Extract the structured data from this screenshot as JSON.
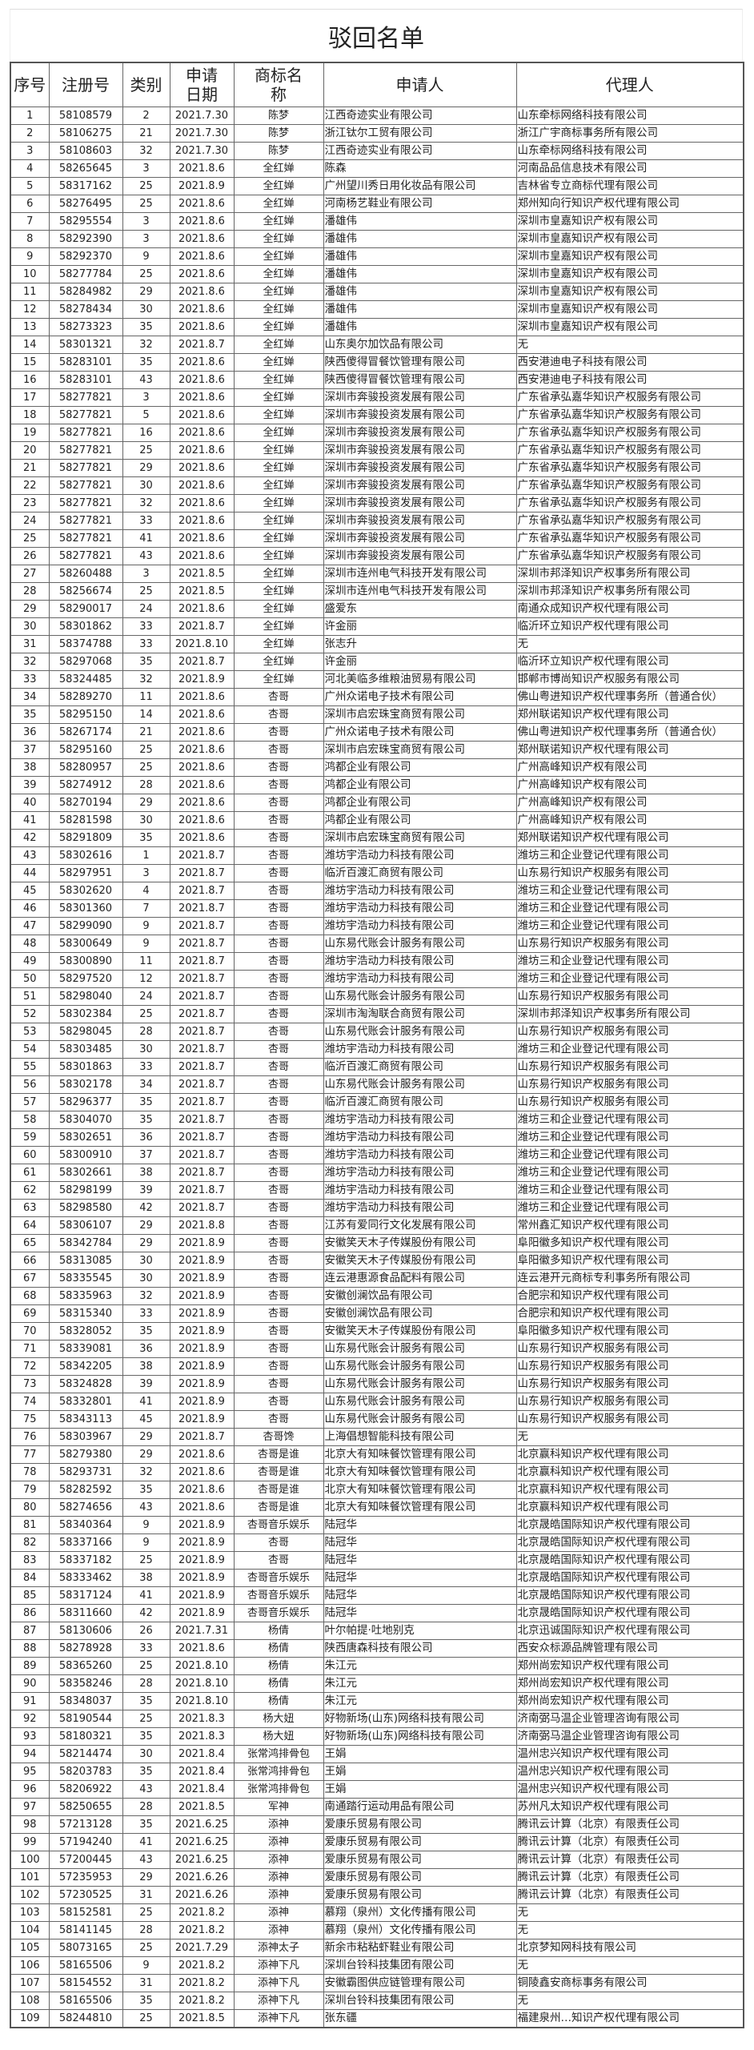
{
  "title": "驳回名单",
  "columns": [
    "序号",
    "注册号",
    "类别",
    "申请日期",
    "商标名称",
    "申请人",
    "代理人"
  ],
  "rows": [
    [
      "1",
      "58108579",
      "2",
      "2021.7.30",
      "陈梦",
      "江西奇迹实业有限公司",
      "山东牵标网络科技有限公司"
    ],
    [
      "2",
      "58106275",
      "21",
      "2021.7.30",
      "陈梦",
      "浙江钛尔工贸有限公司",
      "浙江广宇商标事务所有限公司"
    ],
    [
      "3",
      "58108603",
      "32",
      "2021.7.30",
      "陈梦",
      "江西奇迹实业有限公司",
      "山东牵标网络科技有限公司"
    ],
    [
      "4",
      "58265645",
      "3",
      "2021.8.6",
      "全红婵",
      "陈森",
      "河南品品信息技术有限公司"
    ],
    [
      "5",
      "58317162",
      "25",
      "2021.8.9",
      "全红婵",
      "广州望川秀日用化妆品有限公司",
      "吉林省专立商标代理有限公司"
    ],
    [
      "6",
      "58276495",
      "25",
      "2021.8.6",
      "全红婵",
      "河南杨艺鞋业有限公司",
      "郑州知向行知识产权代理有限公司"
    ],
    [
      "7",
      "58295554",
      "3",
      "2021.8.6",
      "全红婵",
      "潘雄伟",
      "深圳市皇嘉知识产权有限公司"
    ],
    [
      "8",
      "58292390",
      "3",
      "2021.8.6",
      "全红婵",
      "潘雄伟",
      "深圳市皇嘉知识产权有限公司"
    ],
    [
      "9",
      "58292370",
      "9",
      "2021.8.6",
      "全红婵",
      "潘雄伟",
      "深圳市皇嘉知识产权有限公司"
    ],
    [
      "10",
      "58277784",
      "25",
      "2021.8.6",
      "全红婵",
      "潘雄伟",
      "深圳市皇嘉知识产权有限公司"
    ],
    [
      "11",
      "58284982",
      "29",
      "2021.8.6",
      "全红婵",
      "潘雄伟",
      "深圳市皇嘉知识产权有限公司"
    ],
    [
      "12",
      "58278434",
      "30",
      "2021.8.6",
      "全红婵",
      "潘雄伟",
      "深圳市皇嘉知识产权有限公司"
    ],
    [
      "13",
      "58273323",
      "35",
      "2021.8.6",
      "全红婵",
      "潘雄伟",
      "深圳市皇嘉知识产权有限公司"
    ],
    [
      "14",
      "58301321",
      "32",
      "2021.8.7",
      "全红婵",
      "山东奥尔加饮品有限公司",
      "无"
    ],
    [
      "15",
      "58283101",
      "35",
      "2021.8.6",
      "全红婵",
      "陕西傻得冒餐饮管理有限公司",
      "西安港迪电子科技有限公司"
    ],
    [
      "16",
      "58283101",
      "43",
      "2021.8.6",
      "全红婵",
      "陕西傻得冒餐饮管理有限公司",
      "西安港迪电子科技有限公司"
    ],
    [
      "17",
      "58277821",
      "3",
      "2021.8.6",
      "全红婵",
      "深圳市奔骏投资发展有限公司",
      "广东省承弘嘉华知识产权服务有限公司"
    ],
    [
      "18",
      "58277821",
      "5",
      "2021.8.6",
      "全红婵",
      "深圳市奔骏投资发展有限公司",
      "广东省承弘嘉华知识产权服务有限公司"
    ],
    [
      "19",
      "58277821",
      "16",
      "2021.8.6",
      "全红婵",
      "深圳市奔骏投资发展有限公司",
      "广东省承弘嘉华知识产权服务有限公司"
    ],
    [
      "20",
      "58277821",
      "25",
      "2021.8.6",
      "全红婵",
      "深圳市奔骏投资发展有限公司",
      "广东省承弘嘉华知识产权服务有限公司"
    ],
    [
      "21",
      "58277821",
      "29",
      "2021.8.6",
      "全红婵",
      "深圳市奔骏投资发展有限公司",
      "广东省承弘嘉华知识产权服务有限公司"
    ],
    [
      "22",
      "58277821",
      "30",
      "2021.8.6",
      "全红婵",
      "深圳市奔骏投资发展有限公司",
      "广东省承弘嘉华知识产权服务有限公司"
    ],
    [
      "23",
      "58277821",
      "32",
      "2021.8.6",
      "全红婵",
      "深圳市奔骏投资发展有限公司",
      "广东省承弘嘉华知识产权服务有限公司"
    ],
    [
      "24",
      "58277821",
      "33",
      "2021.8.6",
      "全红婵",
      "深圳市奔骏投资发展有限公司",
      "广东省承弘嘉华知识产权服务有限公司"
    ],
    [
      "25",
      "58277821",
      "41",
      "2021.8.6",
      "全红婵",
      "深圳市奔骏投资发展有限公司",
      "广东省承弘嘉华知识产权服务有限公司"
    ],
    [
      "26",
      "58277821",
      "43",
      "2021.8.6",
      "全红婵",
      "深圳市奔骏投资发展有限公司",
      "广东省承弘嘉华知识产权服务有限公司"
    ],
    [
      "27",
      "58260488",
      "3",
      "2021.8.5",
      "全红婵",
      "深圳市连州电气科技开发有限公司",
      "深圳市邦泽知识产权事务所有限公司"
    ],
    [
      "28",
      "58256674",
      "25",
      "2021.8.5",
      "全红婵",
      "深圳市连州电气科技开发有限公司",
      "深圳市邦泽知识产权事务所有限公司"
    ],
    [
      "29",
      "58290017",
      "24",
      "2021.8.6",
      "全红婵",
      "盛爱东",
      "南通众成知识产权代理有限公司"
    ],
    [
      "30",
      "58301862",
      "33",
      "2021.8.7",
      "全红婵",
      "许金丽",
      "临沂环立知识产权代理有限公司"
    ],
    [
      "31",
      "58374788",
      "33",
      "2021.8.10",
      "全红婵",
      "张志升",
      "无"
    ],
    [
      "32",
      "58297068",
      "35",
      "2021.8.7",
      "全红婵",
      "许金丽",
      "临沂环立知识产权代理有限公司"
    ],
    [
      "33",
      "58324485",
      "32",
      "2021.8.9",
      "全红婵",
      "河北美临多维粮油贸易有限公司",
      "邯郸市博尚知识产权服务有限公司"
    ],
    [
      "34",
      "58289270",
      "11",
      "2021.8.6",
      "杏哥",
      "广州众诺电子技术有限公司",
      "佛山粤进知识产权代理事务所（普通合伙）"
    ],
    [
      "35",
      "58295150",
      "14",
      "2021.8.6",
      "杏哥",
      "深圳市启宏珠宝商贸有限公司",
      "郑州联诺知识产权代理有限公司"
    ],
    [
      "36",
      "58267174",
      "21",
      "2021.8.6",
      "杏哥",
      "广州众诺电子技术有限公司",
      "佛山粤进知识产权代理事务所（普通合伙）"
    ],
    [
      "37",
      "58295160",
      "25",
      "2021.8.6",
      "杏哥",
      "深圳市启宏珠宝商贸有限公司",
      "郑州联诺知识产权代理有限公司"
    ],
    [
      "38",
      "58280957",
      "25",
      "2021.8.6",
      "杏哥",
      "鸿都企业有限公司",
      "广州高峰知识产权有限公司"
    ],
    [
      "39",
      "58274912",
      "28",
      "2021.8.6",
      "杏哥",
      "鸿都企业有限公司",
      "广州高峰知识产权有限公司"
    ],
    [
      "40",
      "58270194",
      "29",
      "2021.8.6",
      "杏哥",
      "鸿都企业有限公司",
      "广州高峰知识产权有限公司"
    ],
    [
      "41",
      "58281598",
      "30",
      "2021.8.6",
      "杏哥",
      "鸿都企业有限公司",
      "广州高峰知识产权有限公司"
    ],
    [
      "42",
      "58291809",
      "35",
      "2021.8.6",
      "杏哥",
      "深圳市启宏珠宝商贸有限公司",
      "郑州联诺知识产权代理有限公司"
    ],
    [
      "43",
      "58302616",
      "1",
      "2021.8.7",
      "杏哥",
      "潍坊宇浩动力科技有限公司",
      "潍坊三和企业登记代理有限公司"
    ],
    [
      "44",
      "58297951",
      "3",
      "2021.8.7",
      "杏哥",
      "临沂百渡汇商贸有限公司",
      "山东易行知识产权服务有限公司"
    ],
    [
      "45",
      "58302620",
      "4",
      "2021.8.7",
      "杏哥",
      "潍坊宇浩动力科技有限公司",
      "潍坊三和企业登记代理有限公司"
    ],
    [
      "46",
      "58301360",
      "7",
      "2021.8.7",
      "杏哥",
      "潍坊宇浩动力科技有限公司",
      "潍坊三和企业登记代理有限公司"
    ],
    [
      "47",
      "58299090",
      "9",
      "2021.8.7",
      "杏哥",
      "潍坊宇浩动力科技有限公司",
      "潍坊三和企业登记代理有限公司"
    ],
    [
      "48",
      "58300649",
      "9",
      "2021.8.7",
      "杏哥",
      "山东易代账会计服务有限公司",
      "山东易行知识产权服务有限公司"
    ],
    [
      "49",
      "58300890",
      "11",
      "2021.8.7",
      "杏哥",
      "潍坊宇浩动力科技有限公司",
      "潍坊三和企业登记代理有限公司"
    ],
    [
      "50",
      "58297520",
      "12",
      "2021.8.7",
      "杏哥",
      "潍坊宇浩动力科技有限公司",
      "潍坊三和企业登记代理有限公司"
    ],
    [
      "51",
      "58298040",
      "24",
      "2021.8.7",
      "杏哥",
      "山东易代账会计服务有限公司",
      "山东易行知识产权服务有限公司"
    ],
    [
      "52",
      "58302384",
      "25",
      "2021.8.7",
      "杏哥",
      "深圳市淘淘联合商贸有限公司",
      "深圳市邦泽知识产权事务所有限公司"
    ],
    [
      "53",
      "58298045",
      "28",
      "2021.8.7",
      "杏哥",
      "山东易代账会计服务有限公司",
      "山东易行知识产权服务有限公司"
    ],
    [
      "54",
      "58303485",
      "30",
      "2021.8.7",
      "杏哥",
      "潍坊宇浩动力科技有限公司",
      "潍坊三和企业登记代理有限公司"
    ],
    [
      "55",
      "58301863",
      "33",
      "2021.8.7",
      "杏哥",
      "临沂百渡汇商贸有限公司",
      "山东易行知识产权服务有限公司"
    ],
    [
      "56",
      "58302178",
      "34",
      "2021.8.7",
      "杏哥",
      "山东易代账会计服务有限公司",
      "山东易行知识产权服务有限公司"
    ],
    [
      "57",
      "58296377",
      "35",
      "2021.8.7",
      "杏哥",
      "临沂百渡汇商贸有限公司",
      "山东易行知识产权服务有限公司"
    ],
    [
      "58",
      "58304070",
      "35",
      "2021.8.7",
      "杏哥",
      "潍坊宇浩动力科技有限公司",
      "潍坊三和企业登记代理有限公司"
    ],
    [
      "59",
      "58302651",
      "36",
      "2021.8.7",
      "杏哥",
      "潍坊宇浩动力科技有限公司",
      "潍坊三和企业登记代理有限公司"
    ],
    [
      "60",
      "58300910",
      "37",
      "2021.8.7",
      "杏哥",
      "潍坊宇浩动力科技有限公司",
      "潍坊三和企业登记代理有限公司"
    ],
    [
      "61",
      "58302661",
      "38",
      "2021.8.7",
      "杏哥",
      "潍坊宇浩动力科技有限公司",
      "潍坊三和企业登记代理有限公司"
    ],
    [
      "62",
      "58298199",
      "39",
      "2021.8.7",
      "杏哥",
      "潍坊宇浩动力科技有限公司",
      "潍坊三和企业登记代理有限公司"
    ],
    [
      "63",
      "58298580",
      "42",
      "2021.8.7",
      "杏哥",
      "潍坊宇浩动力科技有限公司",
      "潍坊三和企业登记代理有限公司"
    ],
    [
      "64",
      "58306107",
      "29",
      "2021.8.8",
      "杏哥",
      "江苏有爱同行文化发展有限公司",
      "常州鑫汇知识产权代理有限公司"
    ],
    [
      "65",
      "58342784",
      "29",
      "2021.8.9",
      "杏哥",
      "安徽笑天木子传媒股份有限公司",
      "阜阳徽多知识产权代理有限公司"
    ],
    [
      "66",
      "58313085",
      "30",
      "2021.8.9",
      "杏哥",
      "安徽笑天木子传媒股份有限公司",
      "阜阳徽多知识产权代理有限公司"
    ],
    [
      "67",
      "58335545",
      "30",
      "2021.8.9",
      "杏哥",
      "连云港惠源食品配料有限公司",
      "连云港开元商标专利事务所有限公司"
    ],
    [
      "68",
      "58335963",
      "32",
      "2021.8.9",
      "杏哥",
      "安徽创澜饮品有限公司",
      "合肥宗和知识产权代理有限公司"
    ],
    [
      "69",
      "58315340",
      "33",
      "2021.8.9",
      "杏哥",
      "安徽创澜饮品有限公司",
      "合肥宗和知识产权代理有限公司"
    ],
    [
      "70",
      "58328052",
      "35",
      "2021.8.9",
      "杏哥",
      "安徽笑天木子传媒股份有限公司",
      "阜阳徽多知识产权代理有限公司"
    ],
    [
      "71",
      "58339081",
      "36",
      "2021.8.9",
      "杏哥",
      "山东易代账会计服务有限公司",
      "山东易行知识产权服务有限公司"
    ],
    [
      "72",
      "58342205",
      "38",
      "2021.8.9",
      "杏哥",
      "山东易代账会计服务有限公司",
      "山东易行知识产权服务有限公司"
    ],
    [
      "73",
      "58324828",
      "39",
      "2021.8.9",
      "杏哥",
      "山东易代账会计服务有限公司",
      "山东易行知识产权服务有限公司"
    ],
    [
      "74",
      "58332801",
      "41",
      "2021.8.9",
      "杏哥",
      "山东易代账会计服务有限公司",
      "山东易行知识产权服务有限公司"
    ],
    [
      "75",
      "58343113",
      "45",
      "2021.8.9",
      "杏哥",
      "山东易代账会计服务有限公司",
      "山东易行知识产权服务有限公司"
    ],
    [
      "76",
      "58303967",
      "29",
      "2021.8.7",
      "杏哥馋",
      "上海倡想智能科技有限公司",
      "无"
    ],
    [
      "77",
      "58279380",
      "29",
      "2021.8.6",
      "杏哥是谁",
      "北京大有知味餐饮管理有限公司",
      "北京赢科知识产权代理有限公司"
    ],
    [
      "78",
      "58293731",
      "32",
      "2021.8.6",
      "杏哥是谁",
      "北京大有知味餐饮管理有限公司",
      "北京赢科知识产权代理有限公司"
    ],
    [
      "79",
      "58282592",
      "35",
      "2021.8.6",
      "杏哥是谁",
      "北京大有知味餐饮管理有限公司",
      "北京赢科知识产权代理有限公司"
    ],
    [
      "80",
      "58274656",
      "43",
      "2021.8.6",
      "杏哥是谁",
      "北京大有知味餐饮管理有限公司",
      "北京赢科知识产权代理有限公司"
    ],
    [
      "81",
      "58340364",
      "9",
      "2021.8.9",
      "杏哥音乐娱乐",
      "陆冠华",
      "北京晟皓国际知识产权代理有限公司"
    ],
    [
      "82",
      "58337166",
      "9",
      "2021.8.9",
      "杏哥",
      "陆冠华",
      "北京晟皓国际知识产权代理有限公司"
    ],
    [
      "83",
      "58337182",
      "25",
      "2021.8.9",
      "杏哥",
      "陆冠华",
      "北京晟皓国际知识产权代理有限公司"
    ],
    [
      "84",
      "58333462",
      "38",
      "2021.8.9",
      "杏哥音乐娱乐",
      "陆冠华",
      "北京晟皓国际知识产权代理有限公司"
    ],
    [
      "85",
      "58317124",
      "41",
      "2021.8.9",
      "杏哥音乐娱乐",
      "陆冠华",
      "北京晟皓国际知识产权代理有限公司"
    ],
    [
      "86",
      "58311660",
      "42",
      "2021.8.9",
      "杏哥音乐娱乐",
      "陆冠华",
      "北京晟皓国际知识产权代理有限公司"
    ],
    [
      "87",
      "58130606",
      "26",
      "2021.7.31",
      "杨倩",
      "叶尔帕提·吐地别克",
      "北京迅诚国际知识产权代理有限公司"
    ],
    [
      "88",
      "58278928",
      "33",
      "2021.8.6",
      "杨倩",
      "陕西唐森科技有限公司",
      "西安众标源品牌管理有限公司"
    ],
    [
      "89",
      "58365260",
      "25",
      "2021.8.10",
      "杨倩",
      "朱江元",
      "郑州尚宏知识产权代理有限公司"
    ],
    [
      "90",
      "58358246",
      "28",
      "2021.8.10",
      "杨倩",
      "朱江元",
      "郑州尚宏知识产权代理有限公司"
    ],
    [
      "91",
      "58348037",
      "35",
      "2021.8.10",
      "杨倩",
      "朱江元",
      "郑州尚宏知识产权代理有限公司"
    ],
    [
      "92",
      "58190544",
      "25",
      "2021.8.3",
      "杨大妞",
      "好物新场(山东)网络科技有限公司",
      "济南弼马温企业管理咨询有限公司"
    ],
    [
      "93",
      "58180321",
      "35",
      "2021.8.3",
      "杨大妞",
      "好物新场(山东)网络科技有限公司",
      "济南弼马温企业管理咨询有限公司"
    ],
    [
      "94",
      "58214474",
      "30",
      "2021.8.4",
      "张常鸿排骨包",
      "王娟",
      "温州忠兴知识产权代理有限公司"
    ],
    [
      "95",
      "58203783",
      "35",
      "2021.8.4",
      "张常鸿排骨包",
      "王娟",
      "温州忠兴知识产权代理有限公司"
    ],
    [
      "96",
      "58206922",
      "43",
      "2021.8.4",
      "张常鸿排骨包",
      "王娟",
      "温州忠兴知识产权代理有限公司"
    ],
    [
      "97",
      "58250655",
      "28",
      "2021.8.5",
      "军神",
      "南通踏行运动用品有限公司",
      "苏州凡太知识产权代理有限公司"
    ],
    [
      "98",
      "57213128",
      "35",
      "2021.6.25",
      "添神",
      "爱康乐贸易有限公司",
      "腾讯云计算（北京）有限责任公司"
    ],
    [
      "99",
      "57194240",
      "41",
      "2021.6.25",
      "添神",
      "爱康乐贸易有限公司",
      "腾讯云计算（北京）有限责任公司"
    ],
    [
      "100",
      "57200445",
      "43",
      "2021.6.25",
      "添神",
      "爱康乐贸易有限公司",
      "腾讯云计算（北京）有限责任公司"
    ],
    [
      "101",
      "57235953",
      "29",
      "2021.6.26",
      "添神",
      "爱康乐贸易有限公司",
      "腾讯云计算（北京）有限责任公司"
    ],
    [
      "102",
      "57230525",
      "31",
      "2021.6.26",
      "添神",
      "爱康乐贸易有限公司",
      "腾讯云计算（北京）有限责任公司"
    ],
    [
      "103",
      "58152581",
      "25",
      "2021.8.2",
      "添神",
      "慕翔（泉州）文化传播有限公司",
      "无"
    ],
    [
      "104",
      "58141145",
      "28",
      "2021.8.2",
      "添神",
      "慕翔（泉州）文化传播有限公司",
      "无"
    ],
    [
      "105",
      "58073165",
      "25",
      "2021.7.29",
      "添神太子",
      "新余市粘粘虾鞋业有限公司",
      "北京梦知网科技有限公司"
    ],
    [
      "106",
      "58165506",
      "9",
      "2021.8.2",
      "添神下凡",
      "深圳台铃科技集团有限公司",
      "无"
    ],
    [
      "107",
      "58154552",
      "31",
      "2021.8.2",
      "添神下凡",
      "安徽霸图供应链管理有限公司",
      "铜陵鑫安商标事务有限公司"
    ],
    [
      "108",
      "58165506",
      "35",
      "2021.8.2",
      "添神下凡",
      "深圳台铃科技集团有限公司",
      "无"
    ],
    [
      "109",
      "58244810",
      "25",
      "2021.8.5",
      "添神下凡",
      "张东疆",
      "福建泉州…知识产权代理有限公司"
    ]
  ]
}
